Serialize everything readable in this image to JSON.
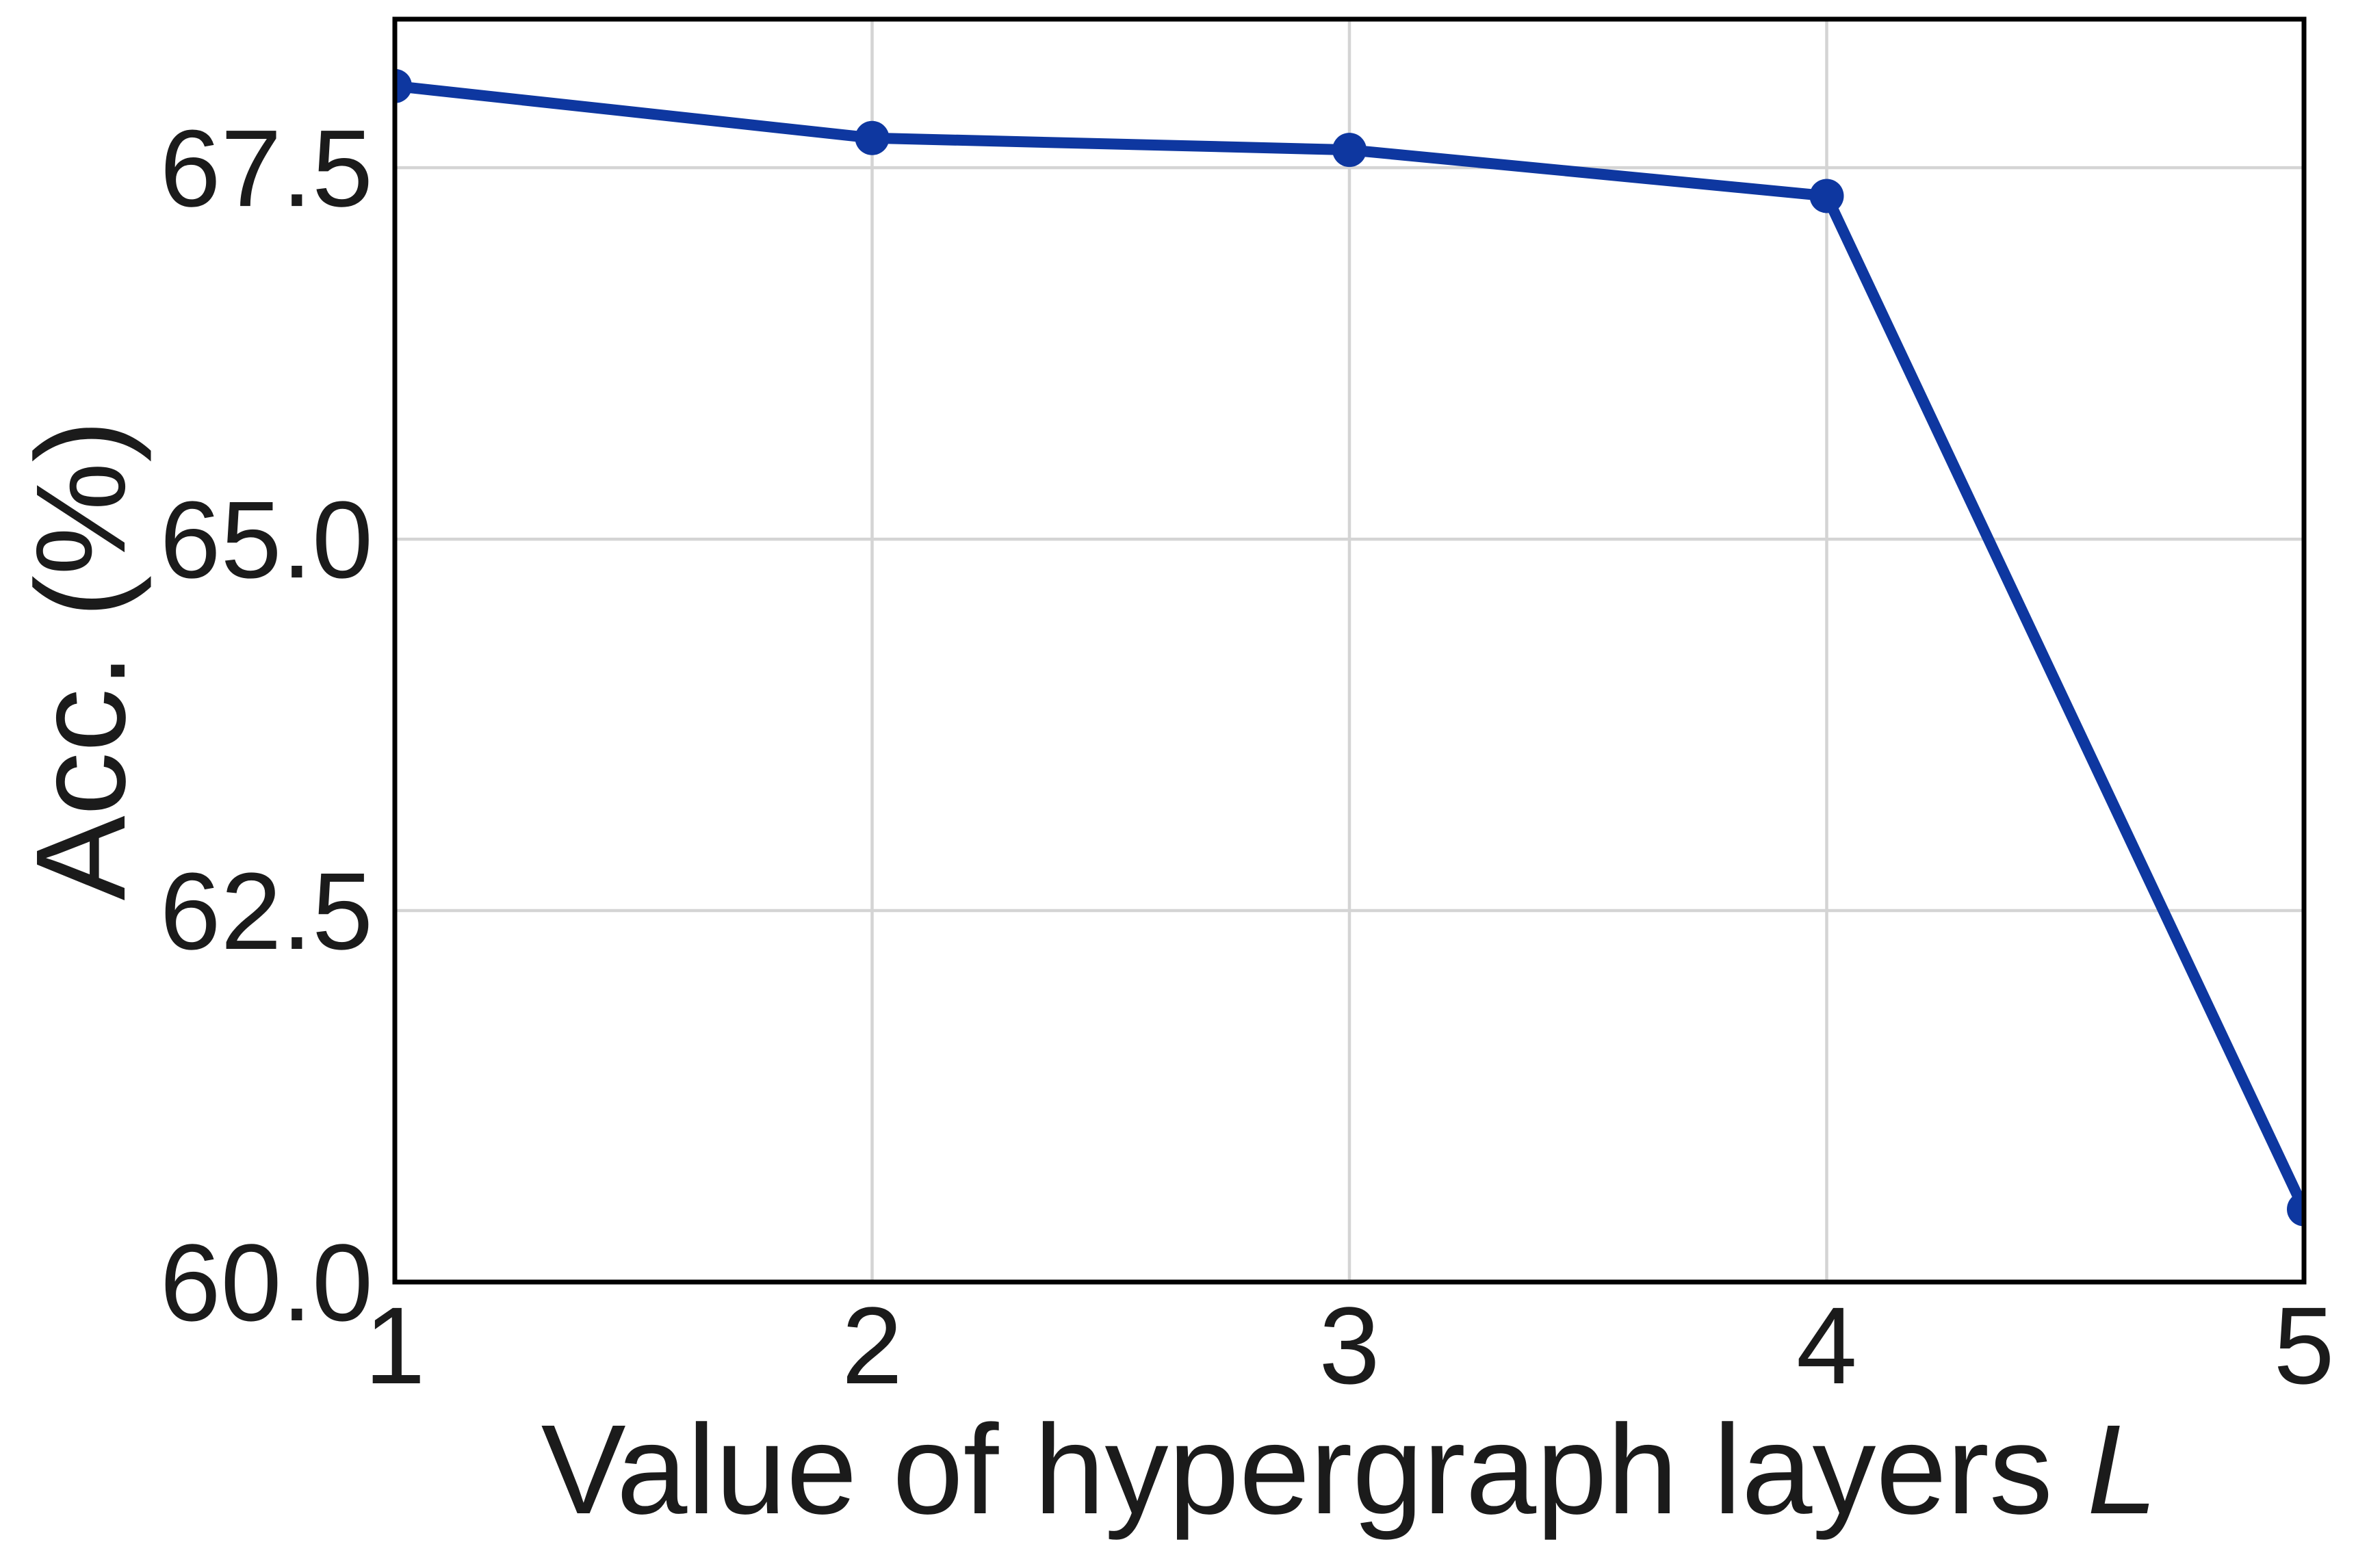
{
  "figure": {
    "background": "#ffffff"
  },
  "chart_data": {
    "type": "line",
    "title": "",
    "xlabel": "Value of hypergraph layers L",
    "xlabel_prefix": "Value of hypergraph layers",
    "xlabel_variable": "L",
    "ylabel": "Acc. (%)",
    "x": [
      1,
      2,
      3,
      4,
      5
    ],
    "values": [
      68.05,
      67.7,
      67.62,
      67.31,
      60.49
    ],
    "xlim": [
      1,
      5
    ],
    "ylim": [
      60.0,
      68.5
    ],
    "x_tick_labels": [
      "1",
      "2",
      "3",
      "4",
      "5"
    ],
    "x_tick_values": [
      1,
      2,
      3,
      4,
      5
    ],
    "y_tick_labels": [
      "60.0",
      "62.5",
      "65.0",
      "67.5"
    ],
    "y_tick_values": [
      60.0,
      62.5,
      65.0,
      67.5
    ],
    "x_gridlines": [
      2,
      3,
      4
    ],
    "y_gridlines": [
      62.5,
      65.0,
      67.5
    ],
    "grid": true,
    "legend": "none",
    "marker": "circle",
    "colors": {
      "line": "#0e37a0",
      "marker": "#0e37a0",
      "grid": "#d4d4d4",
      "spine": "#000000",
      "text": "#1b1b1b",
      "background": "#ffffff"
    }
  }
}
